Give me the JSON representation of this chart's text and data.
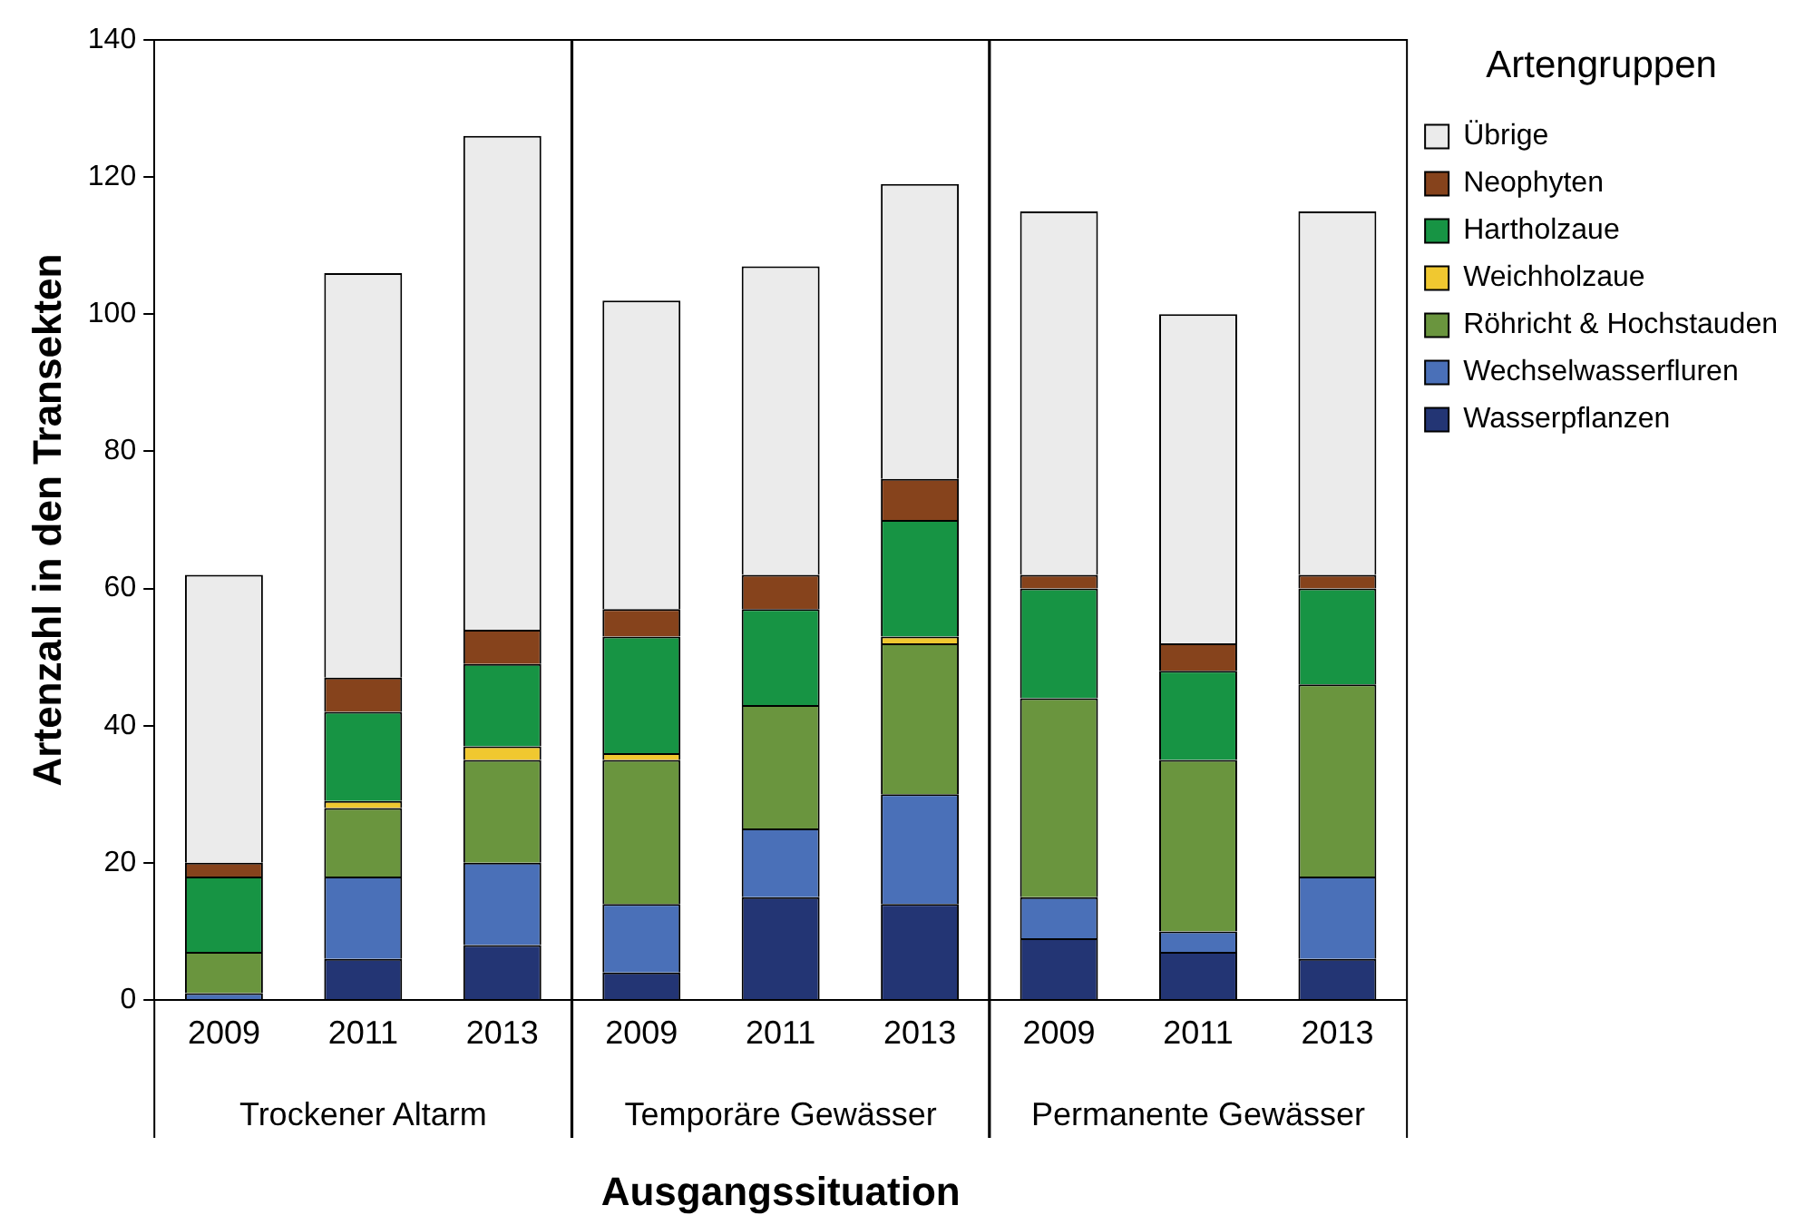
{
  "chart_data": {
    "type": "bar",
    "stacked": true,
    "xlabel": "Ausgangssituation",
    "ylabel": "Artenzahl in den Transekten",
    "legend_title": "Artengruppen",
    "legend": "top right",
    "grid": false,
    "categories": [
      "2009",
      "2011",
      "2013",
      "2009",
      "2011",
      "2013",
      "2009",
      "2011",
      "2013"
    ],
    "annotations": [
      "Trockener Altarm",
      "Temporäre Gewässer",
      "Permanente Gewässer"
    ],
    "ylim": [
      0,
      140
    ],
    "yticks": [
      0,
      20,
      40,
      60,
      80,
      100,
      120,
      140
    ],
    "series": [
      {
        "name": "Wasserpflanzen",
        "color": "#233574",
        "values": [
          0,
          6,
          8,
          4,
          15,
          14,
          9,
          7,
          6
        ]
      },
      {
        "name": "Wechselwasserfluren",
        "color": "#4a70b8",
        "values": [
          1,
          12,
          12,
          10,
          10,
          16,
          6,
          3,
          12
        ]
      },
      {
        "name": "Röhricht & Hochstauden",
        "color": "#6a953e",
        "values": [
          6,
          10,
          15,
          21,
          18,
          22,
          29,
          25,
          28
        ]
      },
      {
        "name": "Weichholzaue",
        "color": "#f0c830",
        "values": [
          0,
          1,
          2,
          1,
          0,
          1,
          0,
          0,
          0
        ]
      },
      {
        "name": "Hartholzaue",
        "color": "#179444",
        "values": [
          11,
          13,
          12,
          17,
          14,
          17,
          16,
          13,
          14
        ]
      },
      {
        "name": "Neophyten",
        "color": "#86431c",
        "values": [
          2,
          5,
          5,
          4,
          5,
          6,
          2,
          4,
          2
        ]
      },
      {
        "name": "Übrige",
        "color": "#ebebeb",
        "values": [
          42,
          59,
          72,
          45,
          45,
          43,
          53,
          48,
          53
        ]
      }
    ]
  }
}
